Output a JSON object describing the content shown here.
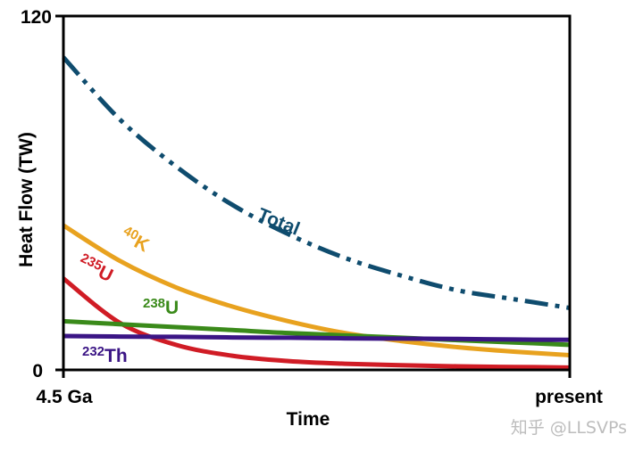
{
  "chart_data": {
    "type": "line",
    "title": "",
    "xlabel": "Time",
    "ylabel": "Heat Flow (TW)",
    "x_tick_labels": [
      "4.5 Ga",
      "present"
    ],
    "y_tick_labels": [
      "0",
      "120"
    ],
    "xlim": [
      0,
      4.5
    ],
    "ylim": [
      0,
      120
    ],
    "grid": false,
    "legend": "none",
    "series": [
      {
        "name": "Total",
        "color": "#0f4c6e",
        "style": "dash-dot-dot",
        "x": [
          0,
          0.5,
          1.0,
          1.5,
          2.0,
          2.5,
          3.0,
          3.5,
          4.0,
          4.5
        ],
        "y": [
          106,
          85,
          69,
          56,
          46,
          38,
          32,
          27,
          24,
          21
        ]
      },
      {
        "name": "K",
        "mass": "40",
        "color": "#e8a21f",
        "style": "solid",
        "x": [
          0,
          0.5,
          1.0,
          1.5,
          2.0,
          2.5,
          3.0,
          3.5,
          4.0,
          4.5
        ],
        "y": [
          49,
          37,
          28,
          21.5,
          16.5,
          12.5,
          9.8,
          7.7,
          6.2,
          5.0
        ]
      },
      {
        "name": "U",
        "mass": "235",
        "color": "#d01c25",
        "style": "solid",
        "x": [
          0,
          0.5,
          1.0,
          1.5,
          2.0,
          2.5,
          3.0,
          3.5,
          4.0,
          4.5
        ],
        "y": [
          31,
          16,
          8.5,
          4.8,
          3.0,
          2.1,
          1.6,
          1.2,
          1.0,
          0.8
        ]
      },
      {
        "name": "U",
        "mass": "238",
        "color": "#3a8a1a",
        "style": "solid",
        "x": [
          0,
          0.5,
          1.0,
          1.5,
          2.0,
          2.5,
          3.0,
          3.5,
          4.0,
          4.5
        ],
        "y": [
          16.5,
          15.5,
          14.5,
          13.5,
          12.5,
          11.7,
          10.9,
          10.1,
          9.3,
          8.5
        ]
      },
      {
        "name": "Th",
        "mass": "232",
        "color": "#3b1585",
        "style": "solid",
        "x": [
          0,
          0.5,
          1.0,
          1.5,
          2.0,
          2.5,
          3.0,
          3.5,
          4.0,
          4.5
        ],
        "y": [
          11.5,
          11.3,
          11.2,
          11.0,
          10.9,
          10.7,
          10.6,
          10.5,
          10.3,
          10.2
        ]
      }
    ]
  },
  "watermark": "知乎 @LLSVPs"
}
